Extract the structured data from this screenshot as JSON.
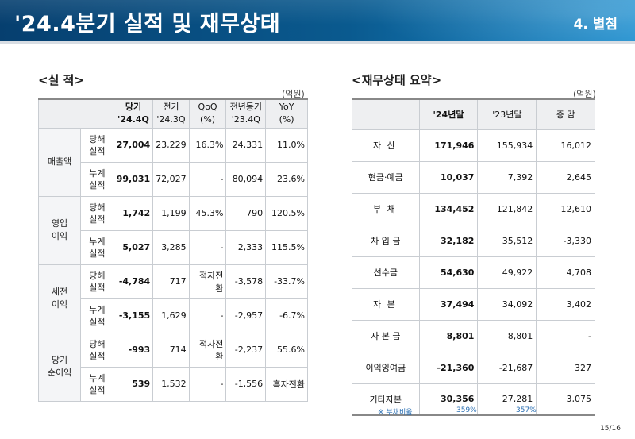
{
  "header": {
    "title": "'24.4분기 실적 및 재무상태",
    "section": "4. 별첨"
  },
  "left": {
    "title": "<실 적>",
    "unit": "(억원)",
    "columns": [
      {
        "label": "당기",
        "sub": "'24.4Q"
      },
      {
        "label": "전기",
        "sub": "'24.3Q"
      },
      {
        "label": "QoQ",
        "sub": "(%)"
      },
      {
        "label": "전년동기",
        "sub": "'23.4Q"
      },
      {
        "label": "YoY",
        "sub": "(%)"
      }
    ],
    "groups": [
      {
        "name": "매출액",
        "rows": [
          {
            "sub": "당해\n실적",
            "values": [
              "27,004",
              "23,229",
              "16.3%",
              "24,331",
              "11.0%"
            ]
          },
          {
            "sub": "누계\n실적",
            "values": [
              "99,031",
              "72,027",
              "-",
              "80,094",
              "23.6%"
            ]
          }
        ]
      },
      {
        "name": "영업\n이익",
        "rows": [
          {
            "sub": "당해\n실적",
            "values": [
              "1,742",
              "1,199",
              "45.3%",
              "790",
              "120.5%"
            ]
          },
          {
            "sub": "누계\n실적",
            "values": [
              "5,027",
              "3,285",
              "-",
              "2,333",
              "115.5%"
            ]
          }
        ]
      },
      {
        "name": "세전\n이익",
        "rows": [
          {
            "sub": "당해\n실적",
            "values": [
              "-4,784",
              "717",
              "적자전환",
              "-3,578",
              "-33.7%"
            ]
          },
          {
            "sub": "누계\n실적",
            "values": [
              "-3,155",
              "1,629",
              "-",
              "-2,957",
              "-6.7%"
            ]
          }
        ]
      },
      {
        "name": "당기\n순이익",
        "rows": [
          {
            "sub": "당해\n실적",
            "values": [
              "-993",
              "714",
              "적자전환",
              "-2,237",
              "55.6%"
            ]
          },
          {
            "sub": "누계\n실적",
            "values": [
              "539",
              "1,532",
              "-",
              "-1,556",
              "흑자전환"
            ]
          }
        ]
      }
    ]
  },
  "right": {
    "title": "<재무상태 요약>",
    "unit": "(억원)",
    "columns": [
      "'24년말",
      "'23년말",
      "증 감"
    ],
    "rows": [
      {
        "label": "자 산",
        "values": [
          "171,946",
          "155,934",
          "16,012"
        ],
        "indent": false
      },
      {
        "label": "현금·예금",
        "values": [
          "10,037",
          "7,392",
          "2,645"
        ],
        "indent": true
      },
      {
        "label": "부 채",
        "values": [
          "134,452",
          "121,842",
          "12,610"
        ],
        "indent": false
      },
      {
        "label": "차 입 금",
        "values": [
          "32,182",
          "35,512",
          "-3,330"
        ],
        "indent": true
      },
      {
        "label": "선수금",
        "values": [
          "54,630",
          "49,922",
          "4,708"
        ],
        "indent": true
      },
      {
        "label": "자 본",
        "values": [
          "37,494",
          "34,092",
          "3,402"
        ],
        "indent": false
      },
      {
        "label": "자 본 금",
        "values": [
          "8,801",
          "8,801",
          "-"
        ],
        "indent": true
      },
      {
        "label": "이익잉여금",
        "values": [
          "-21,360",
          "-21,687",
          "327"
        ],
        "indent": true
      },
      {
        "label": "기타자본",
        "values": [
          "30,356",
          "27,281",
          "3,075"
        ],
        "indent": true
      }
    ],
    "footnote": {
      "label": "※ 부채비율",
      "v1": "359%",
      "v2": "357%"
    }
  },
  "page_number": "15/16"
}
